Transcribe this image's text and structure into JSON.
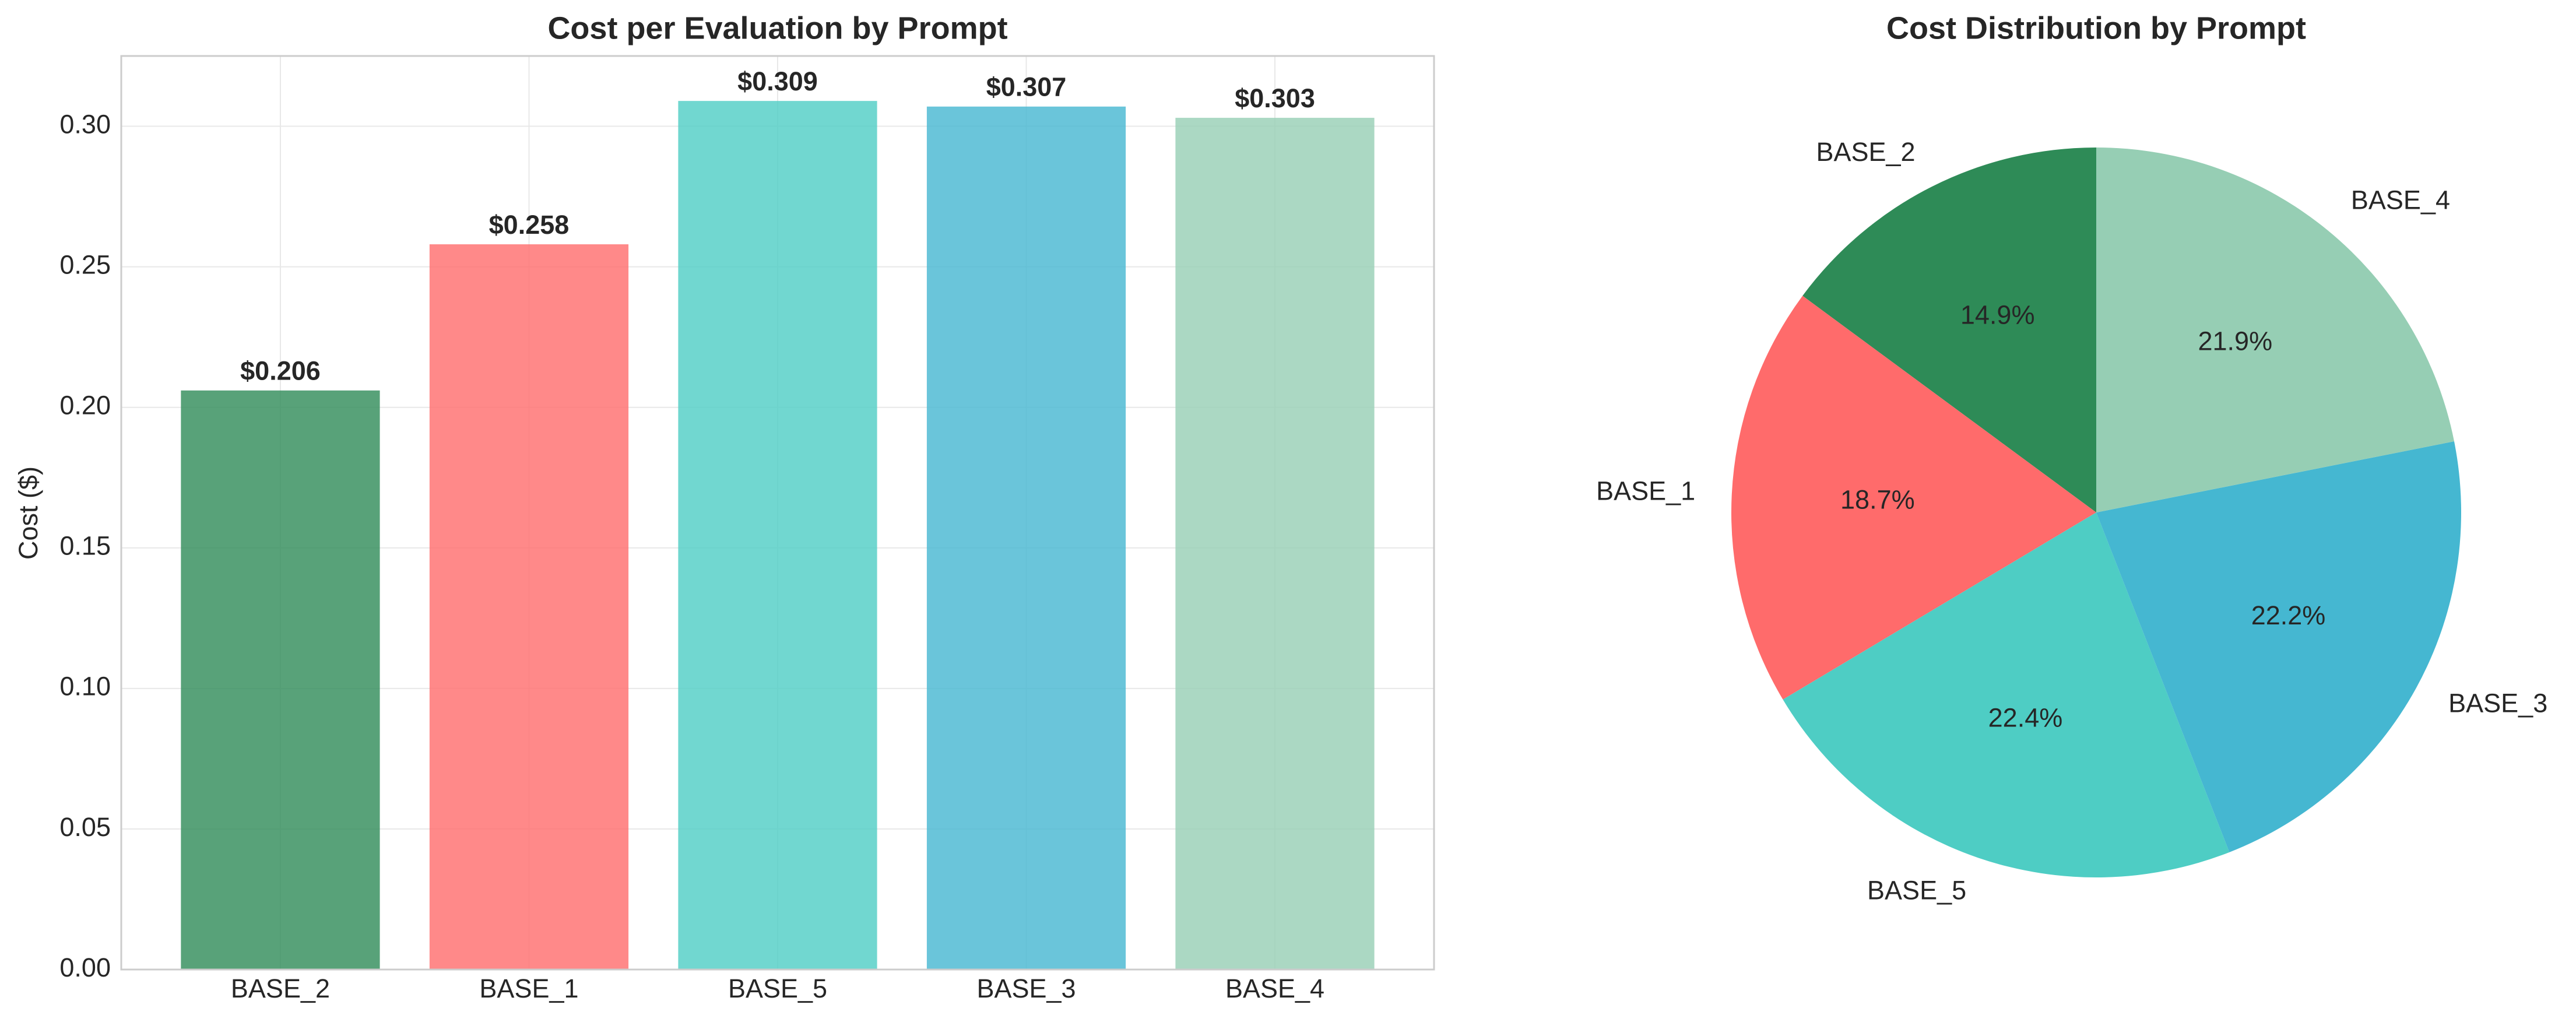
{
  "chart_data": [
    {
      "type": "bar",
      "title": "Cost per Evaluation by Prompt",
      "ylabel": "Cost ($)",
      "categories": [
        "BASE_2",
        "BASE_1",
        "BASE_5",
        "BASE_3",
        "BASE_4"
      ],
      "values": [
        0.206,
        0.258,
        0.309,
        0.307,
        0.303
      ],
      "value_labels": [
        "$0.206",
        "$0.258",
        "$0.309",
        "$0.307",
        "$0.303"
      ],
      "colors": [
        "#2e8b57",
        "#ff6b6b",
        "#4ecdc4",
        "#45b7d1",
        "#96ceb4"
      ],
      "ylim": [
        0,
        0.325
      ],
      "yticks": [
        {
          "value": 0,
          "label": "0.00"
        },
        0.05,
        {
          "value": 0.1,
          "label": "0.10"
        },
        0.15,
        {
          "value": 0.2,
          "label": "0.20"
        },
        0.25,
        {
          "value": 0.3,
          "label": "0.30"
        }
      ],
      "grid": true
    },
    {
      "type": "pie",
      "title": "Cost Distribution by Prompt",
      "categories": [
        "BASE_2",
        "BASE_1",
        "BASE_5",
        "BASE_3",
        "BASE_4"
      ],
      "values": [
        14.9,
        18.7,
        22.4,
        22.2,
        21.9
      ],
      "value_labels": [
        "14.9%",
        "18.7%",
        "22.4%",
        "22.2%",
        "21.9%"
      ],
      "colors": [
        "#2e8b57",
        "#ff6b6b",
        "#4ecdc4",
        "#45b7d1",
        "#96ceb4"
      ]
    }
  ]
}
